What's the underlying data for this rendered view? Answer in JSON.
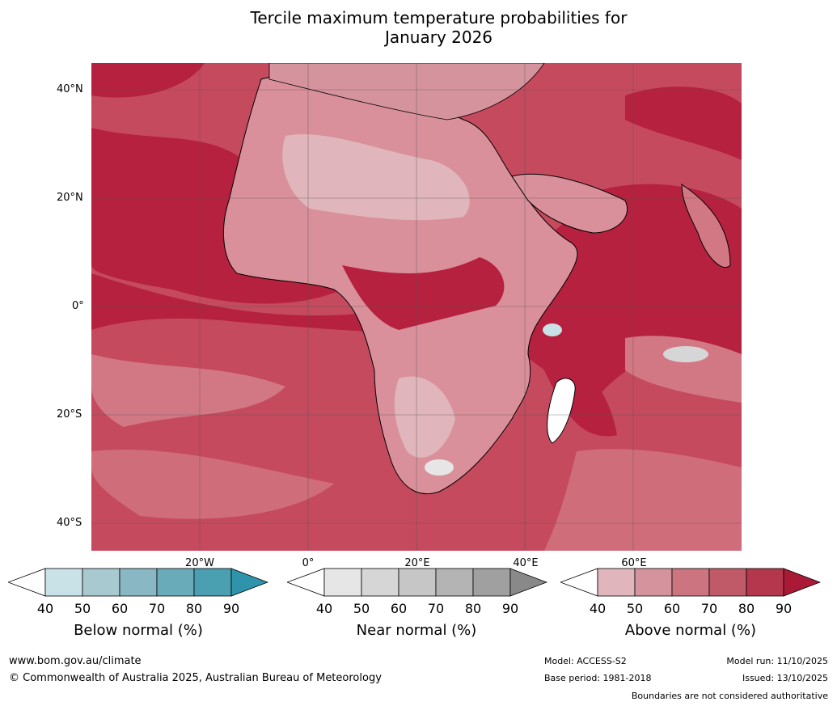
{
  "title_line1": "Tercile maximum temperature probabilities for",
  "title_line2": "January 2026",
  "lat_labels": [
    "40°N",
    "20°N",
    "0°",
    "20°S",
    "40°S"
  ],
  "lon_labels": [
    "20°W",
    "0°",
    "20°E",
    "40°E",
    "60°E"
  ],
  "colorbars": [
    {
      "label": "Below normal (%)",
      "ticks": [
        "40",
        "50",
        "60",
        "70",
        "80",
        "90"
      ],
      "colors": [
        "#ffffff",
        "#c9e2e8",
        "#a8c9d0",
        "#89b7c3",
        "#6aabba",
        "#4a9fb0",
        "#2e93ab"
      ]
    },
    {
      "label": "Near normal (%)",
      "ticks": [
        "40",
        "50",
        "60",
        "70",
        "80",
        "90"
      ],
      "colors": [
        "#ffffff",
        "#e6e6e6",
        "#d6d6d6",
        "#c6c6c6",
        "#b4b4b4",
        "#a0a0a0",
        "#898989"
      ]
    },
    {
      "label": "Above normal (%)",
      "ticks": [
        "40",
        "50",
        "60",
        "70",
        "80",
        "90"
      ],
      "colors": [
        "#ffffff",
        "#e0b6bc",
        "#d5949d",
        "#cc7580",
        "#c15a68",
        "#b5374d",
        "#aa1a36"
      ]
    }
  ],
  "footer": {
    "website": "www.bom.gov.au/climate",
    "copyright": "© Commonwealth of Australia 2025, Australian Bureau of Meteorology",
    "model": "Model: ACCESS-S2",
    "base_period": "Base period: 1981-2018",
    "model_run": "Model run: 11/10/2025",
    "issued": "Issued: 13/10/2025",
    "disclaimer": "Boundaries are not considered authoritative"
  },
  "colors": {
    "ocean_high": "#b5213f",
    "ocean_mid": "#c54a5e",
    "land_low": "#d9909b"
  }
}
